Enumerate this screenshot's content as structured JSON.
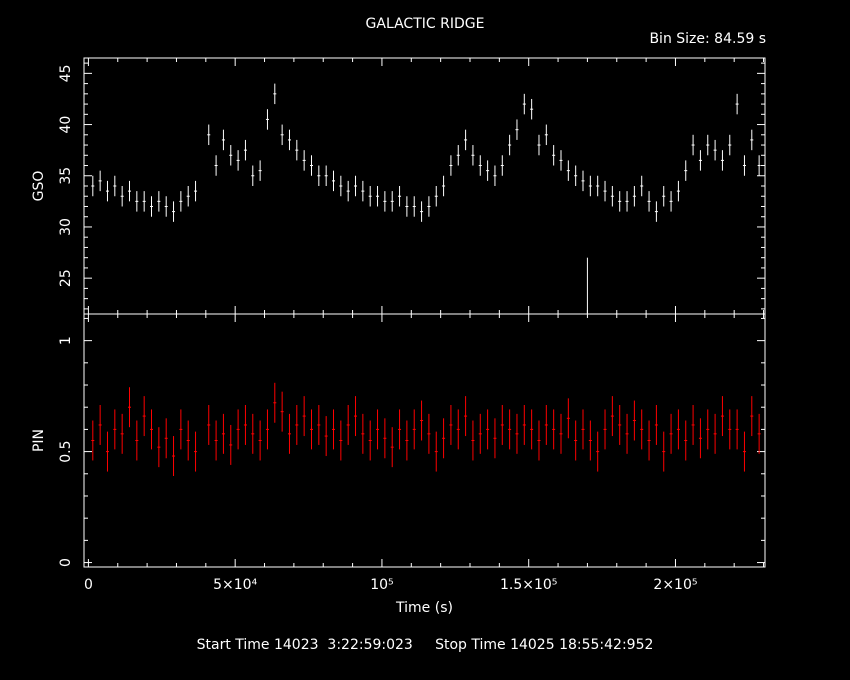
{
  "header": {
    "title": "GALACTIC RIDGE",
    "bin_size": "Bin Size: 84.59 s"
  },
  "footer": {
    "start_label": "Start Time 14023  3:22:59:023",
    "stop_label": "Stop Time 14025 18:55:42:952"
  },
  "colors": {
    "background": "#000000",
    "gso": "#ffffff",
    "pin": "#ff0000",
    "axes": "#ffffff"
  },
  "chart_data": [
    {
      "type": "scatter",
      "panel": "top",
      "ylabel": "GSO",
      "ylim": [
        21.5,
        46.5
      ],
      "xlim": [
        -1500,
        230500
      ],
      "yticks": [
        25,
        30,
        35,
        40,
        45
      ],
      "ytick_labels": [
        "25",
        "30",
        "35",
        "40",
        "45"
      ],
      "error_bars": true,
      "series": [
        {
          "color": "#ffffff",
          "x": [
            1500,
            4000,
            6500,
            9000,
            11500,
            14000,
            16500,
            19000,
            21500,
            24000,
            26500,
            29000,
            31500,
            34000,
            36500,
            41000,
            43500,
            46000,
            48500,
            51000,
            53500,
            56000,
            58500,
            61000,
            63500,
            66000,
            68500,
            71000,
            73500,
            76000,
            78500,
            81000,
            83500,
            86000,
            88500,
            91000,
            93500,
            96000,
            98500,
            101000,
            103500,
            106000,
            108500,
            111000,
            113500,
            116000,
            118500,
            121000,
            123500,
            126000,
            128500,
            131000,
            133500,
            136000,
            138500,
            141000,
            143500,
            146000,
            148500,
            151000,
            153500,
            156000,
            158500,
            161000,
            163500,
            166000,
            168500,
            171000,
            173500,
            176000,
            178500,
            181000,
            183500,
            186000,
            188500,
            191000,
            193500,
            196000,
            198500,
            201000,
            203500,
            206000,
            208500,
            211000,
            213500,
            216000,
            218500,
            221000,
            223500,
            226000,
            228500
          ],
          "y": [
            34,
            34.5,
            33.5,
            34,
            33,
            33.5,
            32.5,
            32.5,
            32,
            32.5,
            32,
            31.5,
            32.5,
            33,
            33.5,
            39,
            36,
            38.5,
            37,
            36.5,
            37.5,
            35,
            35.5,
            40.5,
            43,
            39,
            38.5,
            37.5,
            36.5,
            36,
            35,
            35,
            34.5,
            34,
            33.5,
            34,
            33.5,
            33,
            33,
            32.5,
            32.5,
            33,
            32,
            32,
            31.5,
            32,
            33,
            34,
            36,
            37,
            38.5,
            37,
            36,
            35.5,
            35,
            36,
            38,
            39.5,
            42,
            41.5,
            38,
            39,
            37,
            36.5,
            35.5,
            35,
            34.5,
            34,
            34,
            33.5,
            33,
            32.5,
            32.5,
            33,
            34,
            32.5,
            31.5,
            33,
            32.5,
            33.5,
            35.5,
            38,
            36.5,
            38,
            37.5,
            36.5,
            38,
            42,
            36,
            38.5,
            36
          ]
        },
        {
          "name": "",
          "color": "#ffffff",
          "x": [
            170000
          ],
          "y": [
            21.5
          ],
          "spike_to": 27
        }
      ]
    },
    {
      "type": "scatter",
      "panel": "bottom",
      "ylabel": "PIN",
      "xlabel": "Time (s)",
      "ylim": [
        -0.02,
        1.12
      ],
      "xlim": [
        -1500,
        230500
      ],
      "yticks": [
        0,
        0.5,
        1
      ],
      "ytick_labels": [
        "0",
        "0.5",
        "1"
      ],
      "xticks": [
        0,
        50000,
        100000,
        150000,
        200000
      ],
      "xtick_labels": [
        "0",
        "5×10⁴",
        "10⁵",
        "1.5×10⁵",
        "2×10⁵"
      ],
      "error_bars": true,
      "series": [
        {
          "color": "#ff0000",
          "x": [
            1500,
            4000,
            6500,
            9000,
            11500,
            14000,
            16500,
            19000,
            21500,
            24000,
            26500,
            29000,
            31500,
            34000,
            36500,
            41000,
            43500,
            46000,
            48500,
            51000,
            53500,
            56000,
            58500,
            61000,
            63500,
            66000,
            68500,
            71000,
            73500,
            76000,
            78500,
            81000,
            83500,
            86000,
            88500,
            91000,
            93500,
            96000,
            98500,
            101000,
            103500,
            106000,
            108500,
            111000,
            113500,
            116000,
            118500,
            121000,
            123500,
            126000,
            128500,
            131000,
            133500,
            136000,
            138500,
            141000,
            143500,
            146000,
            148500,
            151000,
            153500,
            156000,
            158500,
            161000,
            163500,
            166000,
            168500,
            171000,
            173500,
            176000,
            178500,
            181000,
            183500,
            186000,
            188500,
            191000,
            193500,
            196000,
            198500,
            201000,
            203500,
            206000,
            208500,
            211000,
            213500,
            216000,
            218500,
            221000,
            223500,
            226000,
            228500
          ],
          "y": [
            0.55,
            0.62,
            0.5,
            0.6,
            0.58,
            0.7,
            0.55,
            0.66,
            0.6,
            0.52,
            0.56,
            0.48,
            0.6,
            0.55,
            0.5,
            0.62,
            0.55,
            0.58,
            0.53,
            0.6,
            0.62,
            0.58,
            0.55,
            0.6,
            0.72,
            0.68,
            0.58,
            0.62,
            0.66,
            0.6,
            0.62,
            0.57,
            0.6,
            0.55,
            0.62,
            0.66,
            0.58,
            0.55,
            0.6,
            0.56,
            0.52,
            0.6,
            0.55,
            0.6,
            0.64,
            0.58,
            0.5,
            0.56,
            0.62,
            0.6,
            0.66,
            0.55,
            0.58,
            0.6,
            0.56,
            0.62,
            0.6,
            0.58,
            0.62,
            0.6,
            0.55,
            0.62,
            0.6,
            0.58,
            0.65,
            0.55,
            0.6,
            0.55,
            0.5,
            0.6,
            0.66,
            0.62,
            0.58,
            0.64,
            0.6,
            0.55,
            0.62,
            0.5,
            0.58,
            0.6,
            0.55,
            0.62,
            0.56,
            0.6,
            0.58,
            0.66,
            0.6,
            0.6,
            0.5,
            0.66,
            0.58
          ]
        }
      ]
    }
  ]
}
